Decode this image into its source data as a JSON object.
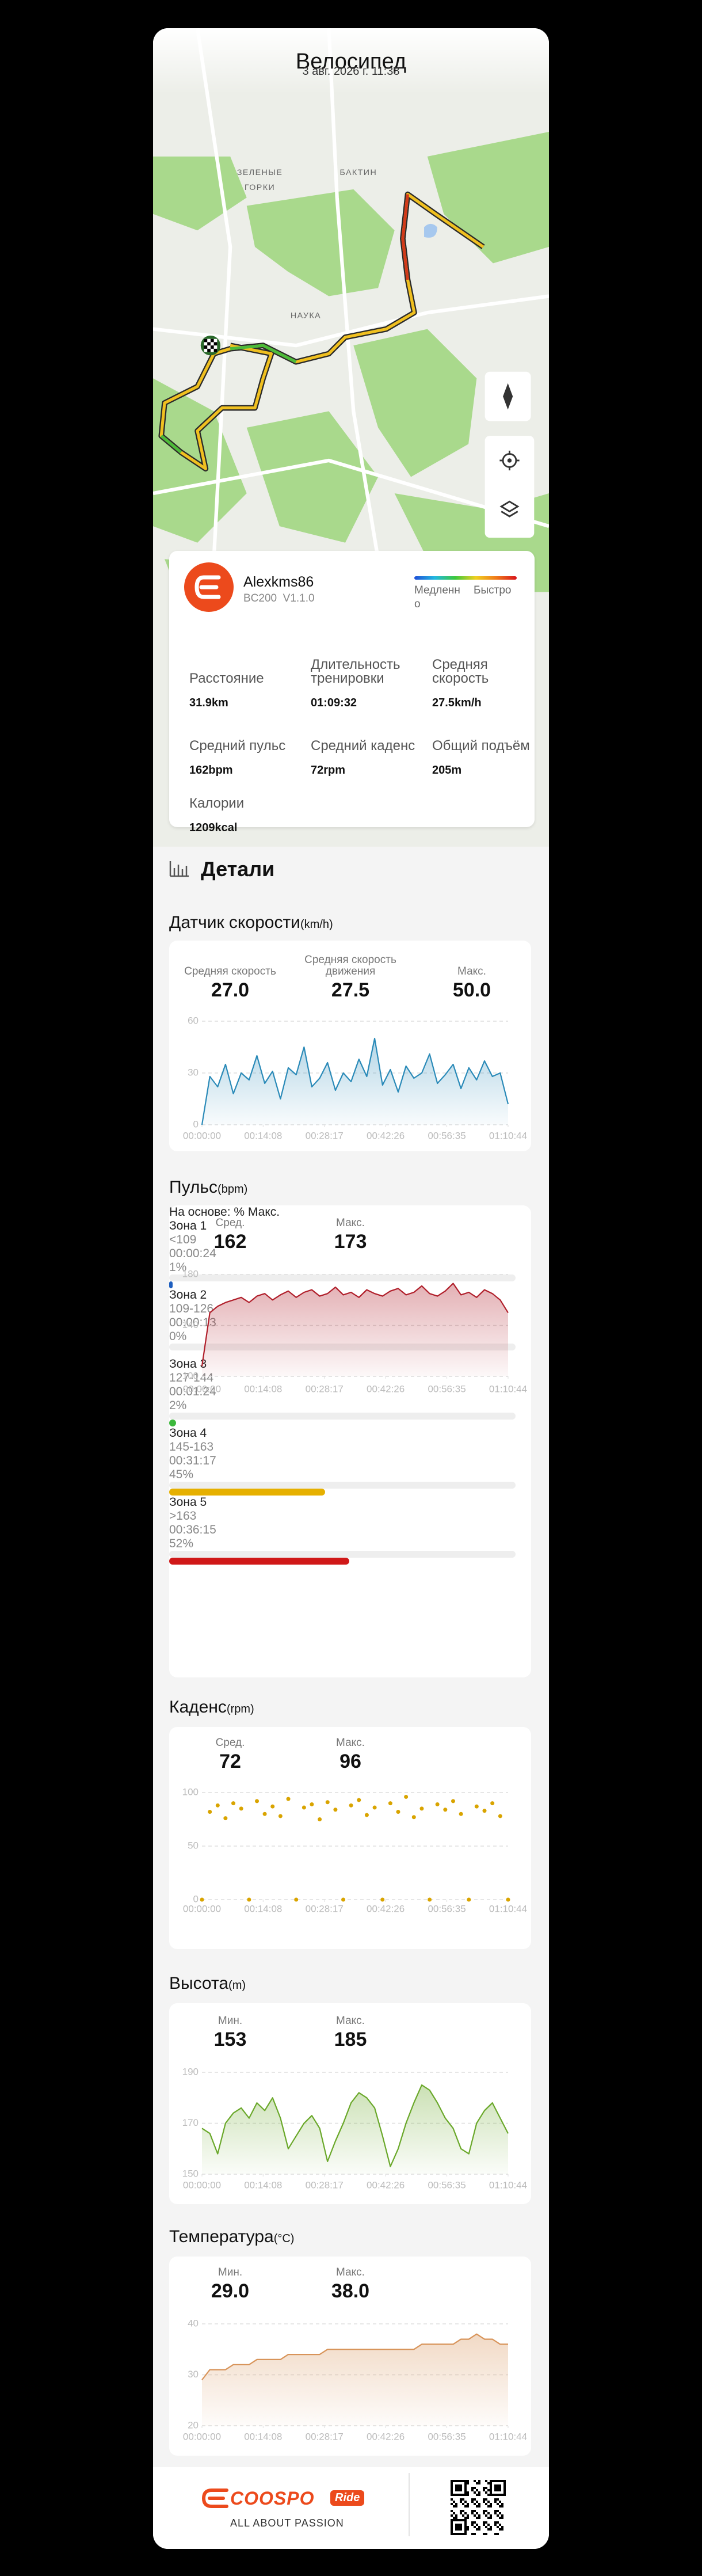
{
  "header": {
    "title": "Велосипед",
    "date": "3 авг. 2026 г. 11:38"
  },
  "map": {
    "labels": [
      "ЗЕЛЕНЫЕ",
      "ГОРКИ",
      "БАКТИН",
      "НАУКА"
    ]
  },
  "summary": {
    "user": "Alexkms86",
    "device": "BC200  V1.1.0",
    "legend_slow": "Медленно",
    "legend_fast": "Быстро",
    "stats": [
      {
        "label": "Расстояние",
        "value": "31.9",
        "unit": "km"
      },
      {
        "label": "Длительность тренировки",
        "value": "01:09:32"
      },
      {
        "label": "Средняя скорость",
        "value": "27.5",
        "unit": "km/h"
      },
      {
        "label": "Средний пульс",
        "value": "162",
        "unit": "bpm"
      },
      {
        "label": "Средний каденс",
        "value": "72",
        "unit": "rpm"
      },
      {
        "label": "Общий подъём",
        "value": "205",
        "unit": "m"
      },
      {
        "label": "Калории",
        "value": "1209",
        "unit": "kcal"
      }
    ]
  },
  "details_title": "Детали",
  "chart_data": [
    {
      "type": "line",
      "title": "Датчик скорости",
      "unit": "(km/h)",
      "color": "#2a8ab8",
      "stats": [
        {
          "label": "Средняя скорость",
          "value": "27.0"
        },
        {
          "label": "Средняя скорость движения",
          "value": "27.5"
        },
        {
          "label": "Макс.",
          "value": "50.0"
        }
      ],
      "x": [
        0,
        109,
        218,
        326,
        435,
        544,
        653,
        762,
        870,
        979,
        1088,
        1197,
        1306,
        1415,
        1523,
        1632,
        1741,
        1850,
        1959,
        2067,
        2176,
        2285,
        2394,
        2503,
        2612,
        2720,
        2829,
        2938,
        3047,
        3156,
        3264,
        3373,
        3482,
        3591,
        3700,
        3808,
        3917,
        4026,
        4135,
        4244
      ],
      "values": [
        0,
        28,
        22,
        35,
        18,
        30,
        26,
        40,
        24,
        31,
        15,
        33,
        29,
        45,
        22,
        27,
        36,
        20,
        30,
        25,
        38,
        28,
        50,
        23,
        32,
        19,
        34,
        27,
        30,
        41,
        24,
        29,
        35,
        21,
        33,
        26,
        37,
        28,
        30,
        12
      ],
      "xlim": [
        0,
        4244
      ],
      "ylim": [
        0,
        60
      ],
      "yticks": [
        0,
        30,
        60
      ],
      "xticks": [
        {
          "value": 0,
          "label": "00:00:00"
        },
        {
          "value": 848,
          "label": "00:14:08"
        },
        {
          "value": 1697,
          "label": "00:28:17"
        },
        {
          "value": 2546,
          "label": "00:42:26"
        },
        {
          "value": 3395,
          "label": "00:56:35"
        },
        {
          "value": 4244,
          "label": "01:10:44"
        }
      ],
      "grid": true
    },
    {
      "type": "line",
      "title": "Пульс",
      "unit": "(bpm)",
      "color": "#b01e2a",
      "stats": [
        {
          "label": "Сред.",
          "value": "162"
        },
        {
          "label": "Макс.",
          "value": "173"
        }
      ],
      "x": [
        0,
        109,
        218,
        326,
        435,
        544,
        653,
        762,
        870,
        979,
        1088,
        1197,
        1306,
        1415,
        1523,
        1632,
        1741,
        1850,
        1959,
        2067,
        2176,
        2285,
        2394,
        2503,
        2612,
        2720,
        2829,
        2938,
        3047,
        3156,
        3264,
        3373,
        3482,
        3591,
        3700,
        3808,
        3917,
        4026,
        4135,
        4244
      ],
      "values": [
        108,
        150,
        155,
        158,
        160,
        162,
        158,
        163,
        165,
        160,
        164,
        167,
        162,
        166,
        168,
        163,
        165,
        170,
        164,
        166,
        162,
        168,
        165,
        163,
        167,
        169,
        164,
        166,
        171,
        165,
        163,
        167,
        173,
        164,
        166,
        162,
        168,
        165,
        160,
        150
      ],
      "xlim": [
        0,
        4244
      ],
      "ylim": [
        100,
        180
      ],
      "yticks": [
        100,
        140,
        180
      ],
      "xticks": [
        {
          "value": 0,
          "label": "00:00:00"
        },
        {
          "value": 848,
          "label": "00:14:08"
        },
        {
          "value": 1697,
          "label": "00:28:17"
        },
        {
          "value": 2546,
          "label": "00:42:26"
        },
        {
          "value": 3395,
          "label": "00:56:35"
        },
        {
          "value": 4244,
          "label": "01:10:44"
        }
      ],
      "grid": true,
      "zones_caption": "На основе: % Макс.",
      "zones": [
        {
          "name": "Зона 1",
          "range": "<109",
          "time": "00:00:24",
          "percent": 1,
          "percent_label": "1%",
          "color": "#1f5fbf"
        },
        {
          "name": "Зона 2",
          "range": "109-126",
          "time": "00:00:13",
          "percent": 0,
          "percent_label": "0%",
          "color": "#9a9a9a"
        },
        {
          "name": "Зона 3",
          "range": "127-144",
          "time": "00:01:24",
          "percent": 2,
          "percent_label": "2%",
          "color": "#3cb83c"
        },
        {
          "name": "Зона 4",
          "range": "145-163",
          "time": "00:31:17",
          "percent": 45,
          "percent_label": "45%",
          "color": "#e6b000"
        },
        {
          "name": "Зона 5",
          "range": ">163",
          "time": "00:36:15",
          "percent": 52,
          "percent_label": "52%",
          "color": "#d01818"
        }
      ]
    },
    {
      "type": "scatter",
      "title": "Каденс",
      "unit": "(rpm)",
      "color": "#d9a400",
      "stats": [
        {
          "label": "Сред.",
          "value": "72"
        },
        {
          "label": "Макс.",
          "value": "96"
        }
      ],
      "x": [
        0,
        109,
        218,
        326,
        435,
        544,
        653,
        762,
        870,
        979,
        1088,
        1197,
        1306,
        1415,
        1523,
        1632,
        1741,
        1850,
        1959,
        2067,
        2176,
        2285,
        2394,
        2503,
        2612,
        2720,
        2829,
        2938,
        3047,
        3156,
        3264,
        3373,
        3482,
        3591,
        3700,
        3808,
        3917,
        4026,
        4135,
        4244
      ],
      "values": [
        0,
        82,
        88,
        76,
        90,
        85,
        0,
        92,
        80,
        87,
        78,
        94,
        0,
        86,
        89,
        75,
        91,
        84,
        0,
        88,
        93,
        79,
        86,
        0,
        90,
        82,
        96,
        77,
        85,
        0,
        89,
        84,
        92,
        80,
        0,
        87,
        83,
        90,
        78,
        0
      ],
      "xlim": [
        0,
        4244
      ],
      "ylim": [
        0,
        100
      ],
      "yticks": [
        0,
        50,
        100
      ],
      "xticks": [
        {
          "value": 0,
          "label": "00:00:00"
        },
        {
          "value": 848,
          "label": "00:14:08"
        },
        {
          "value": 1697,
          "label": "00:28:17"
        },
        {
          "value": 2546,
          "label": "00:42:26"
        },
        {
          "value": 3395,
          "label": "00:56:35"
        },
        {
          "value": 4244,
          "label": "01:10:44"
        }
      ],
      "grid": true
    },
    {
      "type": "line",
      "title": "Высота",
      "unit": "(m)",
      "color": "#6aa82a",
      "stats": [
        {
          "label": "Мин.",
          "value": "153"
        },
        {
          "label": "Макс.",
          "value": "185"
        }
      ],
      "x": [
        0,
        109,
        218,
        326,
        435,
        544,
        653,
        762,
        870,
        979,
        1088,
        1197,
        1306,
        1415,
        1523,
        1632,
        1741,
        1850,
        1959,
        2067,
        2176,
        2285,
        2394,
        2503,
        2612,
        2720,
        2829,
        2938,
        3047,
        3156,
        3264,
        3373,
        3482,
        3591,
        3700,
        3808,
        3917,
        4026,
        4135,
        4244
      ],
      "values": [
        168,
        166,
        158,
        170,
        174,
        176,
        172,
        178,
        175,
        180,
        172,
        160,
        165,
        170,
        173,
        168,
        155,
        163,
        170,
        178,
        182,
        180,
        176,
        165,
        153,
        160,
        170,
        178,
        185,
        183,
        178,
        172,
        168,
        160,
        158,
        170,
        175,
        178,
        172,
        166
      ],
      "xlim": [
        0,
        4244
      ],
      "ylim": [
        150,
        190
      ],
      "yticks": [
        150,
        170,
        190
      ],
      "xticks": [
        {
          "value": 0,
          "label": "00:00:00"
        },
        {
          "value": 848,
          "label": "00:14:08"
        },
        {
          "value": 1697,
          "label": "00:28:17"
        },
        {
          "value": 2546,
          "label": "00:42:26"
        },
        {
          "value": 3395,
          "label": "00:56:35"
        },
        {
          "value": 4244,
          "label": "01:10:44"
        }
      ],
      "grid": true
    },
    {
      "type": "line",
      "title": "Температура",
      "unit": "(°C)",
      "color": "#d8945a",
      "stats": [
        {
          "label": "Мин.",
          "value": "29.0"
        },
        {
          "label": "Макс.",
          "value": "38.0"
        }
      ],
      "x": [
        0,
        109,
        218,
        326,
        435,
        544,
        653,
        762,
        870,
        979,
        1088,
        1197,
        1306,
        1415,
        1523,
        1632,
        1741,
        1850,
        1959,
        2067,
        2176,
        2285,
        2394,
        2503,
        2612,
        2720,
        2829,
        2938,
        3047,
        3156,
        3264,
        3373,
        3482,
        3591,
        3700,
        3808,
        3917,
        4026,
        4135,
        4244
      ],
      "values": [
        29,
        31,
        31,
        31,
        32,
        32,
        32,
        33,
        33,
        33,
        33,
        34,
        34,
        34,
        34,
        34,
        35,
        35,
        35,
        35,
        35,
        35,
        35,
        35,
        35,
        35,
        35,
        35,
        36,
        36,
        36,
        36,
        36,
        37,
        37,
        38,
        37,
        37,
        36,
        36
      ],
      "xlim": [
        0,
        4244
      ],
      "ylim": [
        20,
        40
      ],
      "yticks": [
        20,
        30,
        40
      ],
      "xticks": [
        {
          "value": 0,
          "label": "00:00:00"
        },
        {
          "value": 848,
          "label": "00:14:08"
        },
        {
          "value": 1697,
          "label": "00:28:17"
        },
        {
          "value": 2546,
          "label": "00:42:26"
        },
        {
          "value": 3395,
          "label": "00:56:35"
        },
        {
          "value": 4244,
          "label": "01:10:44"
        }
      ],
      "grid": true
    }
  ],
  "footer": {
    "brand": "COOSPO",
    "badge": "Ride",
    "slogan": "ALL ABOUT PASSION"
  }
}
